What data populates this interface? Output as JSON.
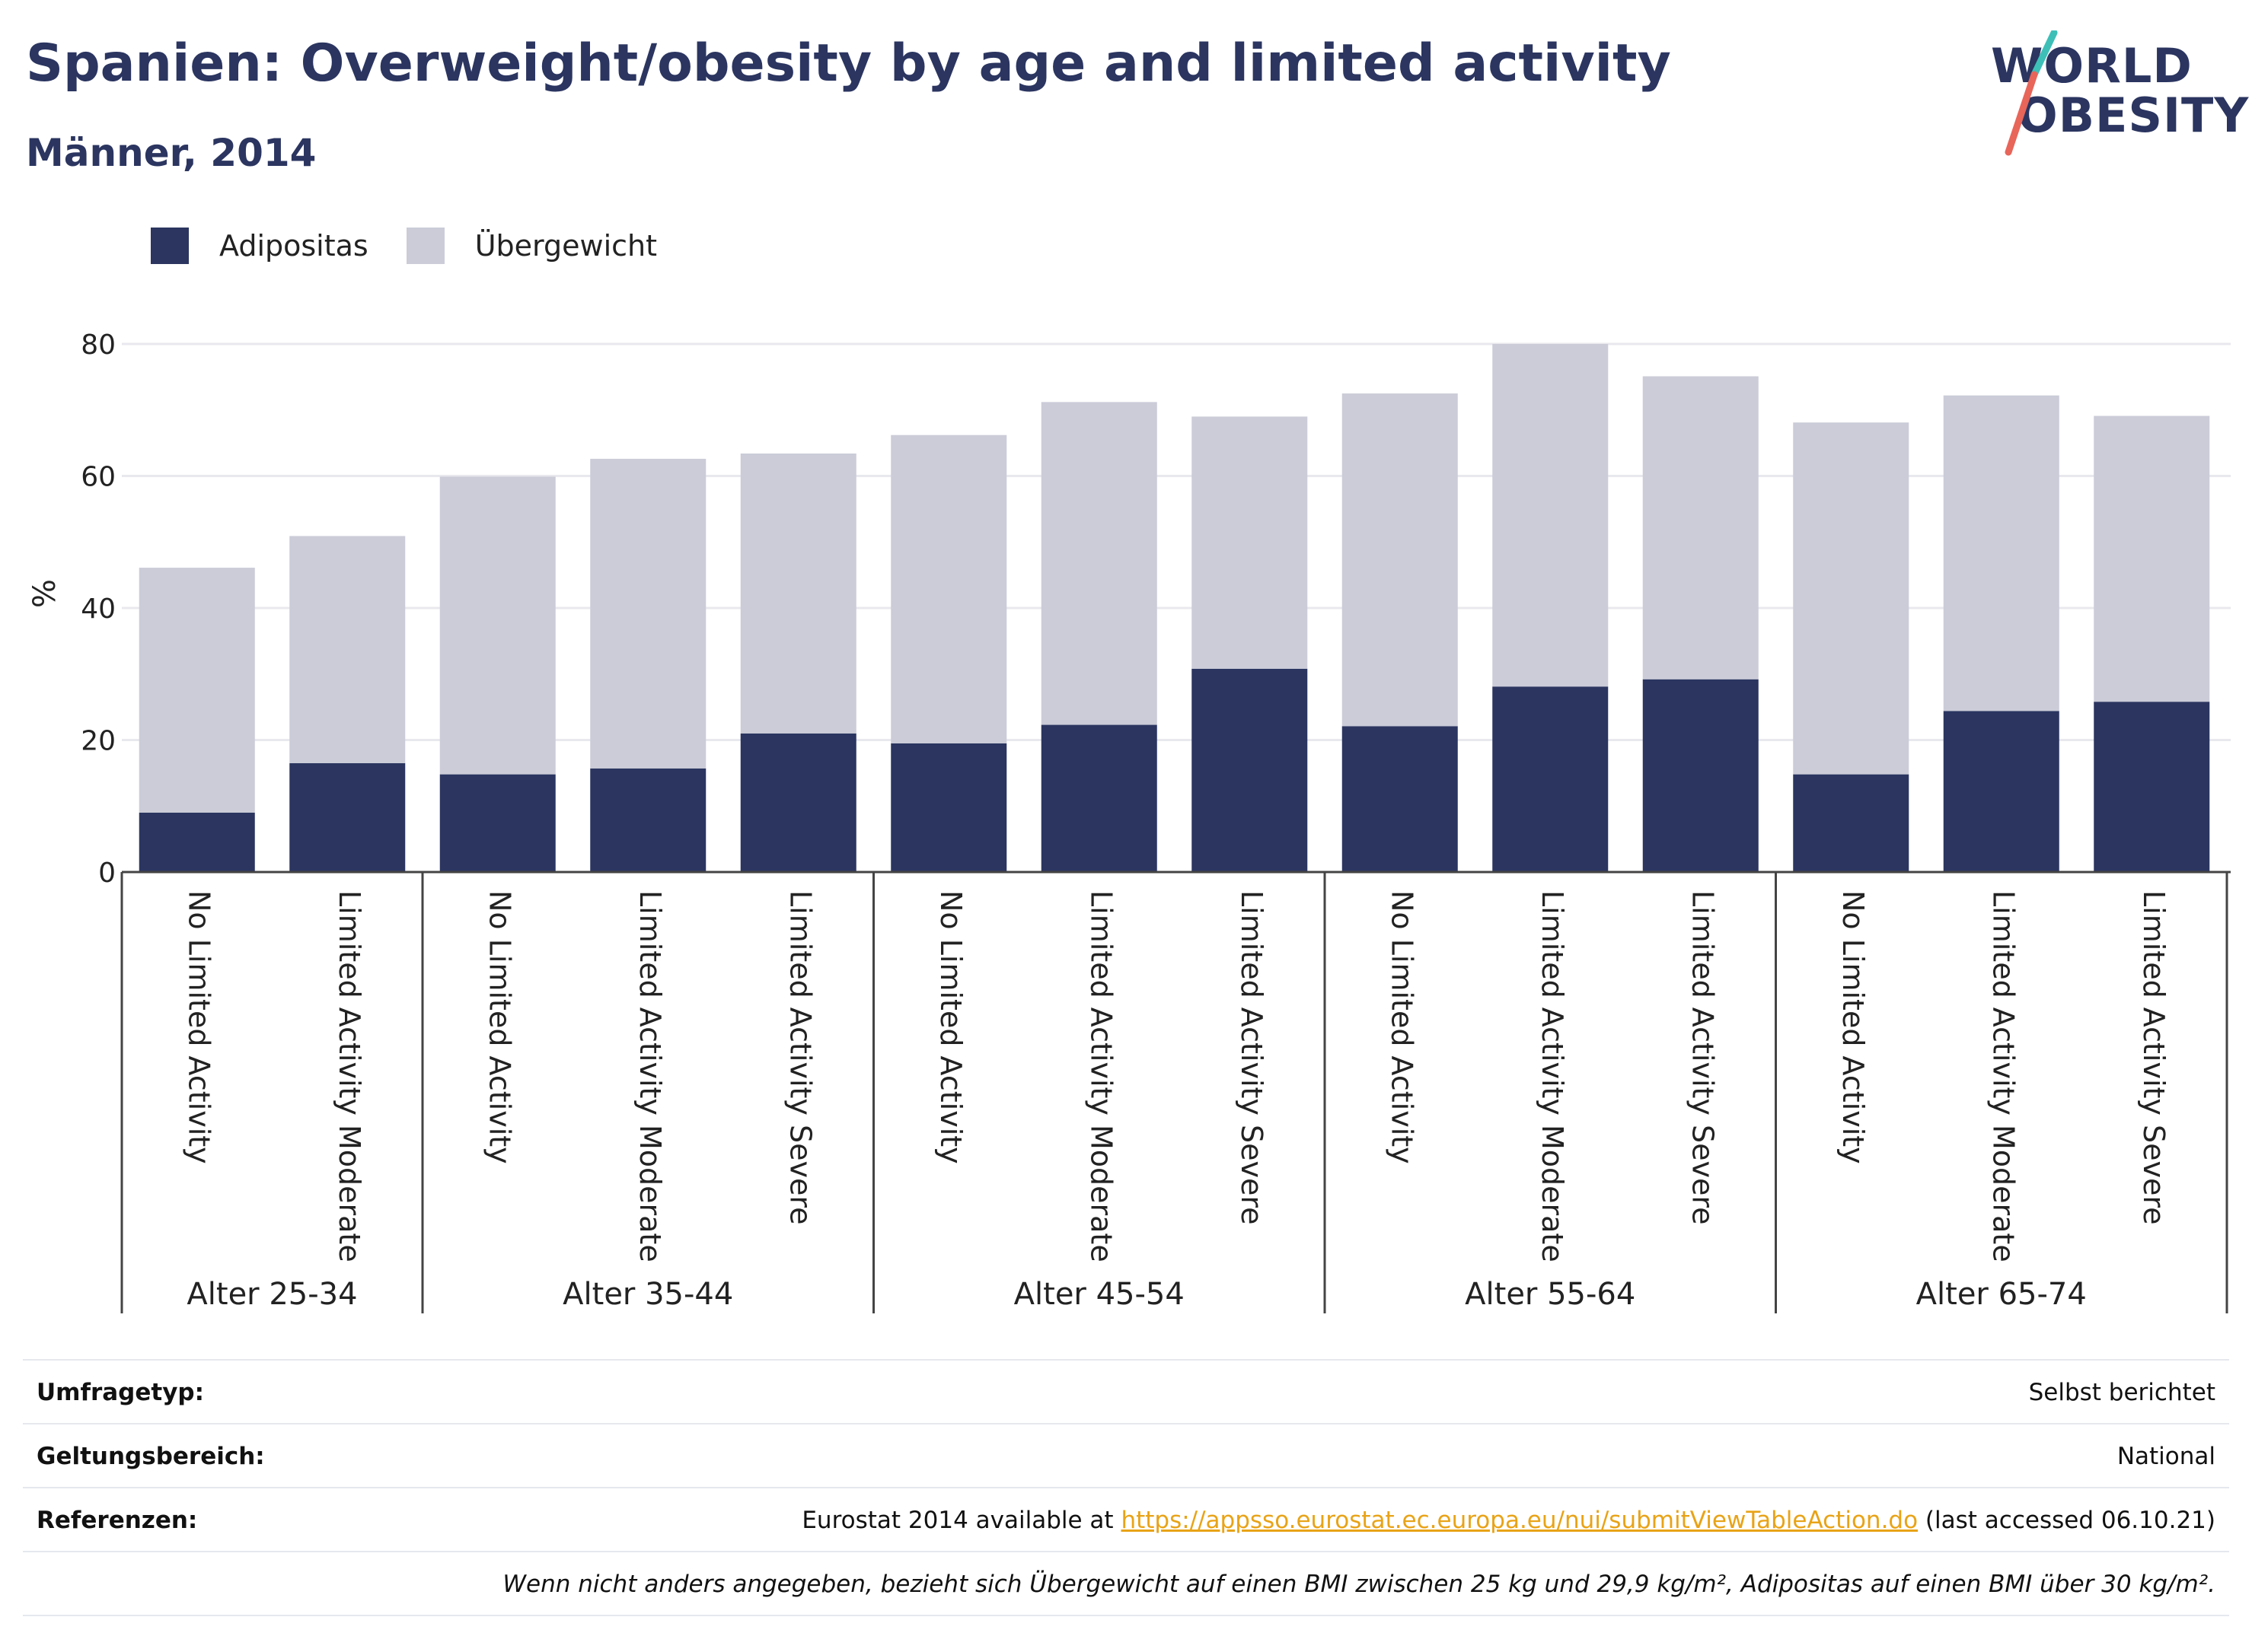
{
  "header": {
    "title": "Spanien: Overweight/obesity by age and limited activity",
    "subtitle": "Männer, 2014"
  },
  "logo": {
    "line1": "WORLD",
    "line2": "OBESITY",
    "colors": {
      "text": "#2b3560",
      "slash_top": "#3dbfb8",
      "slash_bottom": "#e8655a"
    }
  },
  "colors": {
    "obesity": "#2b3560",
    "overweight": "#cbccd8",
    "axis": "#444444",
    "grid": "#e8e8ee"
  },
  "chart_data": {
    "type": "bar",
    "stacked": true,
    "ylabel": "%",
    "ylim": [
      0,
      80
    ],
    "yticks": [
      0,
      20,
      40,
      60,
      80
    ],
    "grid": true,
    "legend_position": "top-left",
    "groups": [
      {
        "label": "Alter 25-34",
        "categories": [
          "No Limited Activity",
          "Limited Activity Moderate"
        ]
      },
      {
        "label": "Alter 35-44",
        "categories": [
          "No Limited Activity",
          "Limited Activity Moderate",
          "Limited Activity Severe"
        ]
      },
      {
        "label": "Alter 45-54",
        "categories": [
          "No Limited Activity",
          "Limited Activity Moderate",
          "Limited Activity Severe"
        ]
      },
      {
        "label": "Alter 55-64",
        "categories": [
          "No Limited Activity",
          "Limited Activity Moderate",
          "Limited Activity Severe"
        ]
      },
      {
        "label": "Alter 65-74",
        "categories": [
          "No Limited Activity",
          "Limited Activity Moderate",
          "Limited Activity Severe"
        ]
      }
    ],
    "series": [
      {
        "name": "Adipositas",
        "color": "#2b3560",
        "values": [
          9.0,
          16.5,
          14.8,
          15.7,
          21.0,
          19.5,
          22.3,
          30.8,
          22.1,
          28.1,
          29.2,
          14.8,
          24.4,
          25.8
        ]
      },
      {
        "name": "Übergewicht",
        "color": "#cbccd8",
        "values": [
          37.1,
          34.4,
          45.1,
          46.9,
          42.4,
          46.7,
          48.9,
          38.2,
          50.4,
          51.9,
          45.9,
          53.3,
          47.8,
          43.3
        ]
      }
    ]
  },
  "info": {
    "rows": [
      {
        "label": "Umfragetyp:",
        "value": "Selbst berichtet"
      },
      {
        "label": "Geltungsbereich:",
        "value": "National"
      },
      {
        "label": "Referenzen:",
        "value_prefix": "Eurostat 2014 available at ",
        "link": "https://appsso.eurostat.ec.europa.eu/nui/submitViewTableAction.do",
        "value_suffix": " (last accessed 06.10.21)"
      }
    ],
    "note": "Wenn nicht anders angegeben, bezieht sich Übergewicht auf einen BMI zwischen 25 kg und 29,9 kg/m², Adipositas auf einen BMI über 30 kg/m²."
  }
}
